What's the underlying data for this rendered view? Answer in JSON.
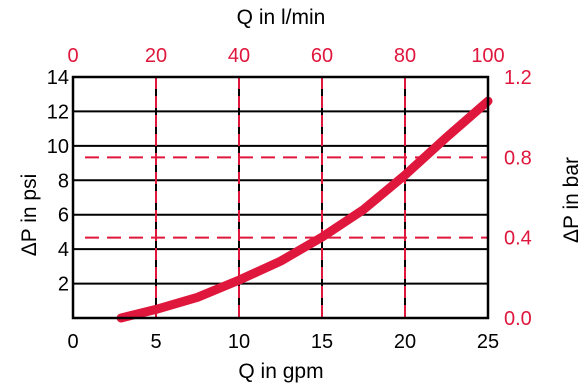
{
  "chart_data": {
    "type": "line",
    "title": "",
    "xlabel": "Q in gpm",
    "ylabel": "ΔP in psi",
    "x2label": "Q in l/min",
    "y2label": "ΔP in bar",
    "xlim": [
      0,
      25
    ],
    "ylim": [
      0,
      14
    ],
    "x2lim": [
      0,
      100
    ],
    "y2lim": [
      0,
      1.2
    ],
    "x_ticks": [
      "0",
      "5",
      "10",
      "15",
      "20",
      "25"
    ],
    "y_ticks": [
      "2",
      "4",
      "6",
      "8",
      "10",
      "12",
      "14"
    ],
    "x2_ticks": [
      "0",
      "20",
      "40",
      "60",
      "80",
      "100"
    ],
    "y2_ticks": [
      "0.0",
      "0.4",
      "0.8",
      "1.2"
    ],
    "grid": true,
    "series": [
      {
        "x": [
          2.9,
          5,
          7.5,
          10,
          12.5,
          15,
          17.5,
          20,
          22.5,
          25
        ],
        "y": [
          0.0,
          0.5,
          1.2,
          2.2,
          3.3,
          4.7,
          6.3,
          8.3,
          10.5,
          12.6
        ]
      }
    ],
    "colors": {
      "primary_axes": "#000000",
      "secondary_axes": "#e0173d",
      "curve": "#e0173d"
    }
  }
}
